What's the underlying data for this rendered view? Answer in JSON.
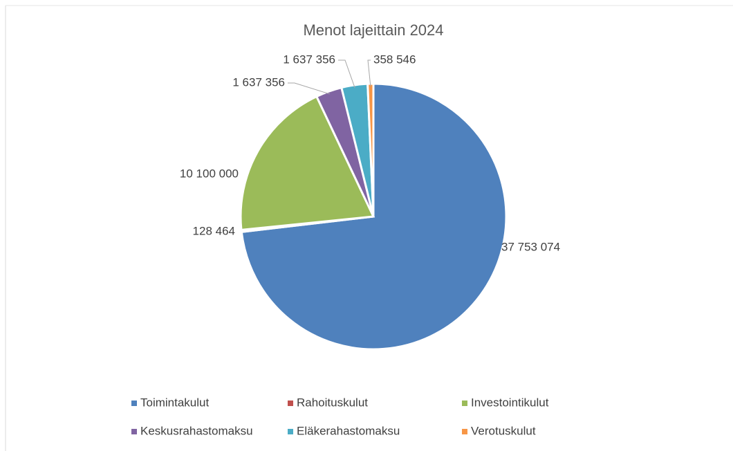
{
  "chart_data": {
    "type": "pie",
    "title": "Menot lajeittain 2024",
    "categories": [
      "Toimintakulut",
      "Rahoituskulut",
      "Investointikulut",
      "Keskusrahastomaksu",
      "Eläkerahastomaksu",
      "Verotuskulut"
    ],
    "values": [
      37753074,
      128464,
      10100000,
      1637356,
      1637356,
      358546
    ],
    "value_labels": [
      "37 753 074",
      "128 464",
      "10 100 000",
      "1 637 356",
      "1 637 356",
      "358 546"
    ],
    "colors": [
      "#4f81bd",
      "#c0504d",
      "#9bbb59",
      "#8064a2",
      "#4bacc6",
      "#f79646"
    ],
    "legend": "bottom"
  }
}
